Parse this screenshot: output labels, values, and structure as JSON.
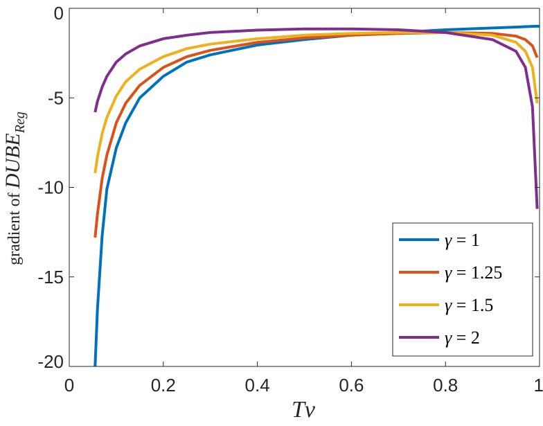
{
  "chart_data": {
    "type": "line",
    "xlabel_var": "Tv",
    "ylabel_prefix": "gradient of ",
    "ylabel_var": "DUBE",
    "ylabel_sub": "Reg",
    "xlim": [
      0,
      1
    ],
    "ylim": [
      -20,
      0
    ],
    "x_ticks": [
      0,
      0.2,
      0.4,
      0.6,
      0.8,
      1
    ],
    "x_tick_labels": [
      "0",
      "0.2",
      "0.4",
      "0.6",
      "0.8",
      "1"
    ],
    "y_ticks": [
      0,
      -5,
      -10,
      -15,
      -20
    ],
    "y_tick_labels": [
      "0",
      "-5",
      "-10",
      "-15",
      "-20"
    ],
    "grid": false,
    "legend_position": "bottom-right",
    "series": [
      {
        "name": "γ = 1",
        "legend_symbol": "γ",
        "legend_value": "= 1",
        "color": "#0072BD",
        "x": [
          0.055,
          0.06,
          0.07,
          0.08,
          0.1,
          0.12,
          0.15,
          0.2,
          0.25,
          0.3,
          0.4,
          0.5,
          0.6,
          0.7,
          0.8,
          0.9,
          0.95,
          0.99,
          1.0
        ],
        "y": [
          -20.0,
          -16.8,
          -12.7,
          -10.1,
          -7.8,
          -6.4,
          -5.0,
          -3.8,
          -3.0,
          -2.6,
          -2.05,
          -1.75,
          -1.5,
          -1.35,
          -1.2,
          -1.1,
          -1.05,
          -1.0,
          -1.0
        ]
      },
      {
        "name": "γ = 1.25",
        "legend_symbol": "γ",
        "legend_value": "= 1.25",
        "color": "#D95319",
        "x": [
          0.055,
          0.06,
          0.07,
          0.08,
          0.1,
          0.12,
          0.15,
          0.2,
          0.25,
          0.3,
          0.4,
          0.5,
          0.6,
          0.7,
          0.8,
          0.9,
          0.95,
          0.97,
          0.985,
          0.995
        ],
        "y": [
          -12.8,
          -11.5,
          -9.5,
          -8.2,
          -6.4,
          -5.3,
          -4.3,
          -3.3,
          -2.7,
          -2.35,
          -1.9,
          -1.65,
          -1.5,
          -1.4,
          -1.35,
          -1.4,
          -1.55,
          -1.75,
          -2.1,
          -2.75
        ]
      },
      {
        "name": "γ = 1.5",
        "legend_symbol": "γ",
        "legend_value": "= 1.5",
        "color": "#EDB120",
        "x": [
          0.055,
          0.06,
          0.07,
          0.08,
          0.1,
          0.12,
          0.15,
          0.2,
          0.25,
          0.3,
          0.4,
          0.5,
          0.6,
          0.7,
          0.8,
          0.9,
          0.95,
          0.97,
          0.985,
          0.995
        ],
        "y": [
          -9.2,
          -8.3,
          -7.0,
          -6.1,
          -4.9,
          -4.1,
          -3.4,
          -2.7,
          -2.25,
          -2.0,
          -1.7,
          -1.5,
          -1.4,
          -1.35,
          -1.35,
          -1.5,
          -1.9,
          -2.4,
          -3.3,
          -5.3
        ]
      },
      {
        "name": "γ = 2",
        "legend_symbol": "γ",
        "legend_value": "= 2",
        "color": "#7E2F8E",
        "x": [
          0.055,
          0.06,
          0.07,
          0.08,
          0.1,
          0.12,
          0.15,
          0.2,
          0.25,
          0.3,
          0.4,
          0.5,
          0.6,
          0.7,
          0.8,
          0.9,
          0.95,
          0.97,
          0.985,
          0.995
        ],
        "y": [
          -5.8,
          -5.2,
          -4.4,
          -3.8,
          -3.0,
          -2.55,
          -2.1,
          -1.7,
          -1.5,
          -1.35,
          -1.22,
          -1.15,
          -1.15,
          -1.2,
          -1.35,
          -1.75,
          -2.4,
          -3.3,
          -5.5,
          -11.2
        ]
      }
    ]
  }
}
